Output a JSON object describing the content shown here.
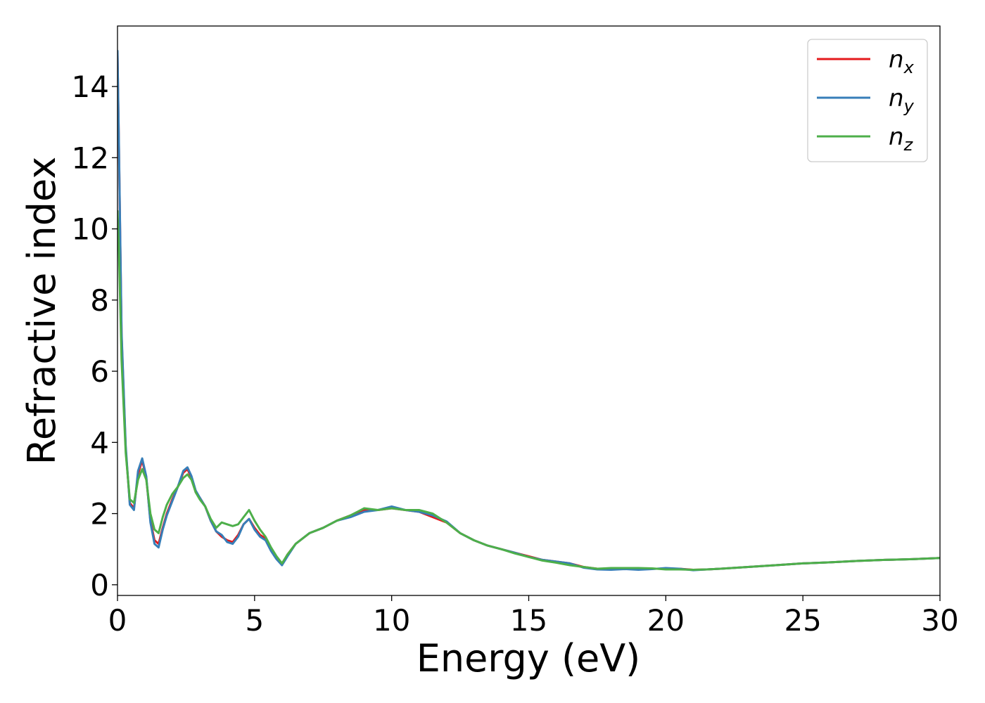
{
  "chart_data": {
    "type": "line",
    "xlabel": "Energy (eV)",
    "ylabel": "Refractive index",
    "xlim": [
      0,
      30
    ],
    "ylim": [
      -0.3,
      15.7
    ],
    "xticks": [
      0,
      5,
      10,
      15,
      20,
      25,
      30
    ],
    "yticks": [
      0,
      2,
      4,
      6,
      8,
      10,
      12,
      14
    ],
    "grid": false,
    "legend_position": "top-right",
    "series": [
      {
        "name": "n_x",
        "label_base": "n",
        "label_sub": "x",
        "color": "#e41a1c",
        "x": [
          0.0,
          0.05,
          0.15,
          0.3,
          0.45,
          0.6,
          0.75,
          0.9,
          1.05,
          1.2,
          1.35,
          1.5,
          1.65,
          1.8,
          2.0,
          2.2,
          2.4,
          2.55,
          2.7,
          2.85,
          3.0,
          3.2,
          3.4,
          3.6,
          3.8,
          4.0,
          4.2,
          4.4,
          4.6,
          4.8,
          5.0,
          5.2,
          5.4,
          5.6,
          5.8,
          6.0,
          6.2,
          6.5,
          7.0,
          7.5,
          8.0,
          8.5,
          9.0,
          9.5,
          10.0,
          10.5,
          11.0,
          11.5,
          12.0,
          12.5,
          13.0,
          13.5,
          14.0,
          14.5,
          15.0,
          15.5,
          16.0,
          16.5,
          17.0,
          17.5,
          18.0,
          18.5,
          19.0,
          19.5,
          20.0,
          20.5,
          21.0,
          21.5,
          22.0,
          23.0,
          24.0,
          25.0,
          26.0,
          27.0,
          28.0,
          29.0,
          30.0
        ],
        "y": [
          14.9,
          12.5,
          7.0,
          3.8,
          2.3,
          2.15,
          3.1,
          3.5,
          3.0,
          1.8,
          1.25,
          1.15,
          1.6,
          2.0,
          2.4,
          2.75,
          3.15,
          3.25,
          3.0,
          2.6,
          2.45,
          2.2,
          1.8,
          1.5,
          1.35,
          1.25,
          1.2,
          1.4,
          1.7,
          1.85,
          1.6,
          1.4,
          1.3,
          1.0,
          0.75,
          0.58,
          0.85,
          1.15,
          1.45,
          1.6,
          1.8,
          1.95,
          2.1,
          2.1,
          2.15,
          2.1,
          2.05,
          1.9,
          1.75,
          1.45,
          1.25,
          1.1,
          1.0,
          0.9,
          0.8,
          0.7,
          0.65,
          0.6,
          0.5,
          0.45,
          0.45,
          0.45,
          0.45,
          0.45,
          0.45,
          0.45,
          0.42,
          0.43,
          0.45,
          0.5,
          0.55,
          0.6,
          0.63,
          0.67,
          0.7,
          0.72,
          0.75
        ]
      },
      {
        "name": "n_y",
        "label_base": "n",
        "label_sub": "y",
        "color": "#377eb8",
        "x": [
          0.0,
          0.05,
          0.15,
          0.3,
          0.45,
          0.6,
          0.75,
          0.9,
          1.05,
          1.2,
          1.35,
          1.5,
          1.65,
          1.8,
          2.0,
          2.2,
          2.4,
          2.55,
          2.7,
          2.85,
          3.0,
          3.2,
          3.4,
          3.6,
          3.8,
          4.0,
          4.2,
          4.4,
          4.6,
          4.8,
          5.0,
          5.2,
          5.4,
          5.6,
          5.8,
          6.0,
          6.2,
          6.5,
          7.0,
          7.5,
          8.0,
          8.5,
          9.0,
          9.5,
          10.0,
          10.5,
          11.0,
          11.5,
          12.0,
          12.5,
          13.0,
          13.5,
          14.0,
          14.5,
          15.0,
          15.5,
          16.0,
          16.5,
          17.0,
          17.5,
          18.0,
          18.5,
          19.0,
          19.5,
          20.0,
          20.5,
          21.0,
          21.5,
          22.0,
          23.0,
          24.0,
          25.0,
          26.0,
          27.0,
          28.0,
          29.0,
          30.0
        ],
        "y": [
          15.0,
          12.6,
          7.1,
          3.9,
          2.25,
          2.1,
          3.2,
          3.55,
          3.05,
          1.75,
          1.15,
          1.05,
          1.55,
          1.95,
          2.35,
          2.75,
          3.2,
          3.3,
          3.05,
          2.65,
          2.45,
          2.2,
          1.8,
          1.5,
          1.4,
          1.2,
          1.15,
          1.35,
          1.7,
          1.85,
          1.55,
          1.35,
          1.25,
          0.95,
          0.72,
          0.55,
          0.8,
          1.15,
          1.45,
          1.6,
          1.8,
          1.9,
          2.05,
          2.1,
          2.2,
          2.1,
          2.05,
          1.95,
          1.78,
          1.45,
          1.25,
          1.1,
          1.0,
          0.9,
          0.78,
          0.7,
          0.65,
          0.6,
          0.48,
          0.43,
          0.42,
          0.44,
          0.42,
          0.44,
          0.47,
          0.45,
          0.41,
          0.43,
          0.45,
          0.5,
          0.55,
          0.6,
          0.63,
          0.67,
          0.7,
          0.72,
          0.75
        ]
      },
      {
        "name": "n_z",
        "label_base": "n",
        "label_sub": "z",
        "color": "#4daf4a",
        "x": [
          0.0,
          0.05,
          0.15,
          0.3,
          0.45,
          0.6,
          0.75,
          0.9,
          1.05,
          1.2,
          1.35,
          1.5,
          1.65,
          1.8,
          2.0,
          2.2,
          2.4,
          2.55,
          2.7,
          2.85,
          3.0,
          3.2,
          3.4,
          3.6,
          3.8,
          4.0,
          4.2,
          4.4,
          4.6,
          4.8,
          5.0,
          5.2,
          5.4,
          5.6,
          5.8,
          6.0,
          6.2,
          6.5,
          7.0,
          7.5,
          8.0,
          8.5,
          9.0,
          9.5,
          10.0,
          10.5,
          11.0,
          11.5,
          12.0,
          12.5,
          13.0,
          13.5,
          14.0,
          14.5,
          15.0,
          15.5,
          16.0,
          16.5,
          17.0,
          17.5,
          18.0,
          18.5,
          19.0,
          19.5,
          20.0,
          20.5,
          21.0,
          21.5,
          22.0,
          23.0,
          24.0,
          25.0,
          26.0,
          27.0,
          28.0,
          29.0,
          30.0
        ],
        "y": [
          10.5,
          9.5,
          6.3,
          3.7,
          2.4,
          2.3,
          2.95,
          3.25,
          2.95,
          2.0,
          1.55,
          1.45,
          1.9,
          2.25,
          2.55,
          2.75,
          3.0,
          3.1,
          2.95,
          2.6,
          2.4,
          2.2,
          1.85,
          1.6,
          1.75,
          1.7,
          1.65,
          1.7,
          1.9,
          2.1,
          1.8,
          1.55,
          1.35,
          1.05,
          0.8,
          0.6,
          0.85,
          1.15,
          1.45,
          1.6,
          1.8,
          1.95,
          2.15,
          2.1,
          2.15,
          2.1,
          2.1,
          2.0,
          1.75,
          1.45,
          1.25,
          1.1,
          1.0,
          0.88,
          0.78,
          0.68,
          0.62,
          0.55,
          0.5,
          0.45,
          0.47,
          0.47,
          0.47,
          0.46,
          0.43,
          0.43,
          0.42,
          0.43,
          0.45,
          0.5,
          0.55,
          0.6,
          0.63,
          0.67,
          0.7,
          0.72,
          0.75
        ]
      }
    ]
  }
}
